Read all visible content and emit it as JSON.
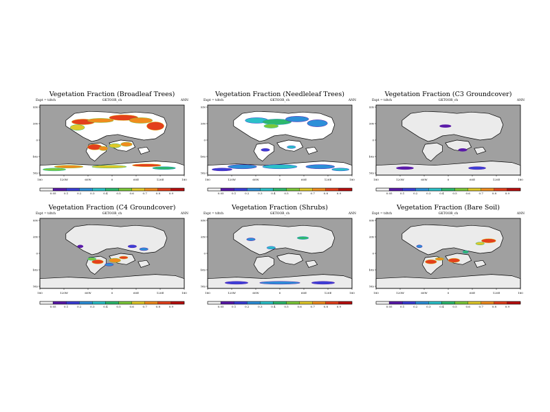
{
  "shared": {
    "lon_ticks": [
      "180",
      "120W",
      "60W",
      "0",
      "60E",
      "120E",
      "180"
    ],
    "lat_ticks": [
      "80N",
      "40N",
      "0",
      "40S",
      "80S"
    ],
    "cbar_ticks": [
      "0.05",
      "0.1",
      "0.2",
      "0.3",
      "0.4",
      "0.5",
      "0.6",
      "0.7",
      "0.8",
      "0.9"
    ]
  },
  "colors": {
    "ocean": "#a0a0a0",
    "land_base": "#ebebeb",
    "coast": "#000000",
    "scale": [
      "#f2f2f2",
      "#5a1aa8",
      "#3b3fd6",
      "#2d8fd8",
      "#2cc0c8",
      "#2db86e",
      "#7cc83a",
      "#e0c82a",
      "#f08c1e",
      "#e3401c",
      "#b80f0f"
    ]
  },
  "panels": [
    {
      "title": "Vegetation Fraction (Broadleaf Trees)",
      "expt": "Expt = tdtch",
      "run": "GKTOOR_ch",
      "period": "ANN",
      "field": "broadleaf"
    },
    {
      "title": "Vegetation Fraction (Needleleaf Trees)",
      "expt": "Expt = tdtch",
      "run": "GKTOOR_ch",
      "period": "ANN",
      "field": "needleleaf"
    },
    {
      "title": "Vegetation Fraction (C3 Groundcover)",
      "expt": "Expt = tdtch",
      "run": "GKTOOR_ch",
      "period": "ANN",
      "field": "c3"
    },
    {
      "title": "Vegetation Fraction (C4 Groundcover)",
      "expt": "Expt = tdtch",
      "run": "GKTOOR_ch",
      "period": "ANN",
      "field": "c4"
    },
    {
      "title": "Vegetation Fraction (Shrubs)",
      "expt": "Expt = tdtch",
      "run": "GKTOOR_ch",
      "period": "ANN",
      "field": "shrubs"
    },
    {
      "title": "Vegetation Fraction (Bare Soil)",
      "expt": "Expt = tdtch",
      "run": "GKTOOR_ch",
      "period": "ANN",
      "field": "baresoil"
    }
  ]
}
